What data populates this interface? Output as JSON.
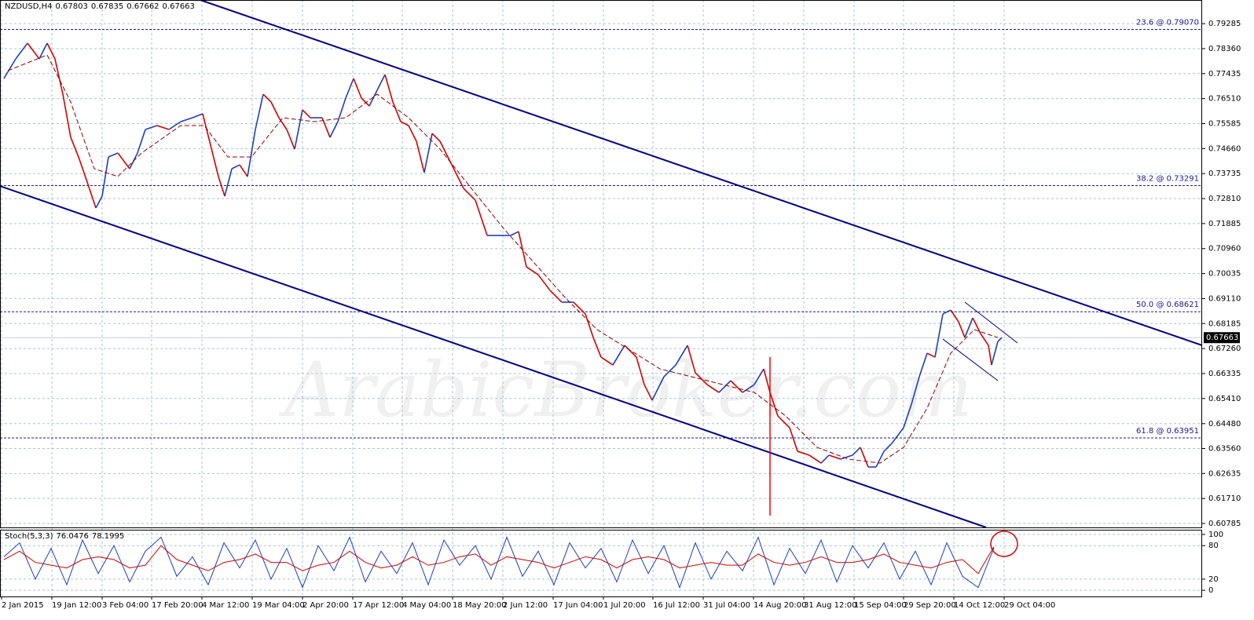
{
  "header": {
    "symbol": "NZDUSD,H4",
    "ohlc": [
      "0.67803",
      "0.67835",
      "0.67662",
      "0.67663"
    ]
  },
  "watermark": "ArabicBroker.com",
  "chart_data": [
    {
      "type": "line",
      "xlim": [
        0,
        1530
      ],
      "ylim": [
        0.6064,
        0.8016
      ],
      "grid": true,
      "xticks": [
        {
          "value": 2,
          "label": "2 Jan 2015"
        },
        {
          "value": 66,
          "label": "19 Jan 12:00"
        },
        {
          "value": 130,
          "label": "3 Feb 04:00"
        },
        {
          "value": 193,
          "label": "17 Feb 20:00"
        },
        {
          "value": 257,
          "label": "4 Mar 12:00"
        },
        {
          "value": 321,
          "label": "19 Mar 04:00"
        },
        {
          "value": 385,
          "label": "2 Apr 20:00"
        },
        {
          "value": 449,
          "label": "17 Apr 12:00"
        },
        {
          "value": 512,
          "label": "4 May 04:00"
        },
        {
          "value": 576,
          "label": "18 May 20:00"
        },
        {
          "value": 640,
          "label": "2 Jun 12:00"
        },
        {
          "value": 704,
          "label": "17 Jun 04:00"
        },
        {
          "value": 768,
          "label": "1 Jul 20:00"
        },
        {
          "value": 831,
          "label": "16 Jul 12:00"
        },
        {
          "value": 895,
          "label": "31 Jul 04:00"
        },
        {
          "value": 959,
          "label": "14 Aug 20:00"
        },
        {
          "value": 1023,
          "label": "31 Aug 12:00"
        },
        {
          "value": 1087,
          "label": "15 Sep 04:00"
        },
        {
          "value": 1150,
          "label": "29 Sep 20:00"
        },
        {
          "value": 1214,
          "label": "14 Oct 12:00"
        },
        {
          "value": 1278,
          "label": "29 Oct 04:00"
        }
      ],
      "yticks": [
        {
          "value": 0.79285,
          "label": "0.79285"
        },
        {
          "value": 0.7836,
          "label": "0.78360"
        },
        {
          "value": 0.77435,
          "label": "0.77435"
        },
        {
          "value": 0.7651,
          "label": "0.76510"
        },
        {
          "value": 0.75585,
          "label": "0.75585"
        },
        {
          "value": 0.7466,
          "label": "0.74660"
        },
        {
          "value": 0.73735,
          "label": "0.73735"
        },
        {
          "value": 0.7281,
          "label": "0.72810"
        },
        {
          "value": 0.71885,
          "label": "0.71885"
        },
        {
          "value": 0.7096,
          "label": "0.70960"
        },
        {
          "value": 0.70035,
          "label": "0.70035"
        },
        {
          "value": 0.6911,
          "label": "0.69110"
        },
        {
          "value": 0.68185,
          "label": "0.68185"
        },
        {
          "value": 0.6726,
          "label": "0.67260"
        },
        {
          "value": 0.66335,
          "label": "0.66335"
        },
        {
          "value": 0.6541,
          "label": "0.65410"
        },
        {
          "value": 0.6448,
          "label": "0.64480"
        },
        {
          "value": 0.6356,
          "label": "0.63560"
        },
        {
          "value": 0.62635,
          "label": "0.62635"
        },
        {
          "value": 0.6171,
          "label": "0.61710"
        },
        {
          "value": 0.60785,
          "label": "0.60785"
        }
      ],
      "series": [
        {
          "color": "#d40000",
          "up_color": "#1c3fbf",
          "x": [
            5,
            20,
            35,
            50,
            60,
            70,
            80,
            90,
            100,
            112,
            122,
            130,
            138,
            150,
            165,
            175,
            185,
            200,
            215,
            230,
            245,
            258,
            268,
            278,
            286,
            295,
            305,
            315,
            325,
            335,
            345,
            355,
            365,
            375,
            385,
            395,
            410,
            420,
            430,
            440,
            450,
            460,
            470,
            480,
            490,
            500,
            510,
            520,
            530,
            540,
            550,
            560,
            575,
            590,
            605,
            620,
            635,
            650,
            660,
            670,
            685,
            700,
            715,
            730,
            745,
            755,
            765,
            780,
            795,
            810,
            820,
            830,
            845,
            860,
            875,
            885,
            900,
            915,
            930,
            945,
            960,
            972,
            980,
            990,
            1005,
            1015,
            1030,
            1045,
            1055,
            1070,
            1085,
            1095,
            1105,
            1115,
            1125,
            1135,
            1150,
            1160,
            1170,
            1180,
            1190,
            1200,
            1210,
            1220,
            1228,
            1238,
            1248,
            1258,
            1262,
            1270,
            1275
          ],
          "values": [
            0.77255,
            0.77981,
            0.78562,
            0.77981,
            0.78562,
            0.77981,
            0.76674,
            0.75076,
            0.7435,
            0.73333,
            0.72462,
            0.72897,
            0.7435,
            0.74495,
            0.73914,
            0.74495,
            0.75367,
            0.75512,
            0.75367,
            0.75657,
            0.75802,
            0.75948,
            0.74786,
            0.73624,
            0.72897,
            0.73914,
            0.74059,
            0.73624,
            0.75367,
            0.76674,
            0.76383,
            0.75802,
            0.75367,
            0.7464,
            0.76093,
            0.75802,
            0.75802,
            0.75076,
            0.75657,
            0.76529,
            0.77255,
            0.76529,
            0.76238,
            0.76819,
            0.774,
            0.76383,
            0.75657,
            0.75512,
            0.74931,
            0.73769,
            0.75221,
            0.74931,
            0.74059,
            0.73188,
            0.72752,
            0.71445,
            0.71445,
            0.71445,
            0.7159,
            0.70283,
            0.69992,
            0.69411,
            0.68976,
            0.68976,
            0.6854,
            0.67668,
            0.66942,
            0.66652,
            0.67378,
            0.66942,
            0.65925,
            0.65344,
            0.66216,
            0.66652,
            0.67378,
            0.66361,
            0.65925,
            0.65635,
            0.66071,
            0.65635,
            0.65925,
            0.66506,
            0.65635,
            0.64763,
            0.64328,
            0.63456,
            0.63311,
            0.6302,
            0.63311,
            0.63166,
            0.63311,
            0.63601,
            0.62875,
            0.62875,
            0.63456,
            0.63747,
            0.64328,
            0.65199,
            0.66216,
            0.67087,
            0.66942,
            0.6854,
            0.68685,
            0.68249,
            0.67668,
            0.68395,
            0.67814,
            0.67378,
            0.66652,
            0.67523,
            0.67663
          ]
        },
        {
          "color": "#8b0000",
          "dash": true,
          "x": [
            10,
            60,
            90,
            120,
            150,
            180,
            230,
            260,
            290,
            320,
            360,
            400,
            440,
            480,
            520,
            560,
            600,
            640,
            680,
            720,
            760,
            800,
            840,
            880,
            920,
            960,
            1000,
            1040,
            1080,
            1120,
            1150,
            1180,
            1210,
            1240,
            1270
          ],
          "values": [
            0.77545,
            0.78126,
            0.76383,
            0.73914,
            0.73624,
            0.74495,
            0.75512,
            0.75512,
            0.7435,
            0.7435,
            0.75802,
            0.75657,
            0.75802,
            0.76674,
            0.75802,
            0.7464,
            0.73188,
            0.71735,
            0.70428,
            0.69121,
            0.67959,
            0.67233,
            0.66506,
            0.66216,
            0.65925,
            0.65635,
            0.64763,
            0.63601,
            0.63166,
            0.6302,
            0.63601,
            0.65054,
            0.67087,
            0.67959,
            0.67668
          ]
        }
      ],
      "lines": [
        {
          "color": "#00008b",
          "width": 2,
          "x": [
            255,
            1530
          ],
          "values": [
            0.8016,
            0.67378
          ]
        },
        {
          "color": "#00008b",
          "width": 2,
          "x": [
            0,
            1255
          ],
          "values": [
            0.73275,
            0.6064
          ]
        },
        {
          "color": "#00008b",
          "width": 1,
          "x": [
            1228,
            1295
          ],
          "values": [
            0.68976,
            0.67465
          ]
        },
        {
          "color": "#00008b",
          "width": 1,
          "x": [
            1200,
            1270
          ],
          "values": [
            0.6761,
            0.66071
          ]
        }
      ],
      "spike": {
        "color": "#ff0000",
        "x": 980,
        "values": [
          0.66942,
          0.61074
        ]
      },
      "fib_levels": [
        {
          "value": 0.7907,
          "label": "23.6 @ 0.79070"
        },
        {
          "value": 0.73291,
          "label": "38.2 @ 0.73291"
        },
        {
          "value": 0.68621,
          "label": "50.0 @ 0.68621"
        },
        {
          "value": 0.63951,
          "label": "61.8 @ 0.63951"
        }
      ],
      "fib_color": "#1a1a8c",
      "last_price": {
        "value": 0.67663,
        "label": "0.67663"
      }
    },
    {
      "type": "line",
      "title": "Stoch(5,3,3)",
      "readings": [
        76.0476,
        78.1995
      ],
      "xlim": [
        0,
        1530
      ],
      "ylim": [
        -11,
        107
      ],
      "yticks": [
        100,
        80,
        20,
        0
      ],
      "grid": true,
      "x": [
        5,
        25,
        45,
        65,
        85,
        105,
        125,
        145,
        165,
        185,
        205,
        225,
        245,
        265,
        285,
        305,
        325,
        345,
        365,
        385,
        405,
        425,
        445,
        465,
        485,
        505,
        525,
        545,
        565,
        585,
        605,
        625,
        645,
        665,
        685,
        705,
        725,
        745,
        765,
        785,
        805,
        825,
        845,
        865,
        885,
        905,
        925,
        945,
        965,
        985,
        1005,
        1025,
        1045,
        1065,
        1085,
        1105,
        1125,
        1145,
        1165,
        1185,
        1205,
        1225,
        1245,
        1265
      ],
      "series": [
        {
          "color": "#1c3fbf",
          "values": [
            60,
            85,
            20,
            75,
            10,
            90,
            30,
            80,
            15,
            70,
            95,
            25,
            60,
            10,
            85,
            40,
            90,
            20,
            75,
            5,
            80,
            35,
            95,
            15,
            70,
            30,
            85,
            10,
            90,
            45,
            80,
            20,
            95,
            25,
            70,
            10,
            85,
            40,
            75,
            15,
            90,
            30,
            80,
            5,
            85,
            20,
            70,
            35,
            95,
            10,
            75,
            30,
            90,
            15,
            80,
            40,
            85,
            20,
            70,
            10,
            85,
            25,
            5,
            76.0476
          ]
        },
        {
          "color": "#d40000",
          "values": [
            55,
            70,
            50,
            45,
            40,
            55,
            60,
            55,
            40,
            45,
            80,
            55,
            45,
            35,
            50,
            55,
            65,
            50,
            50,
            35,
            45,
            50,
            70,
            50,
            40,
            45,
            60,
            45,
            50,
            60,
            65,
            45,
            60,
            55,
            50,
            40,
            50,
            60,
            55,
            40,
            55,
            60,
            55,
            40,
            45,
            50,
            45,
            45,
            65,
            50,
            45,
            50,
            60,
            50,
            50,
            55,
            65,
            50,
            45,
            40,
            50,
            55,
            30,
            78.1995
          ]
        }
      ]
    }
  ]
}
